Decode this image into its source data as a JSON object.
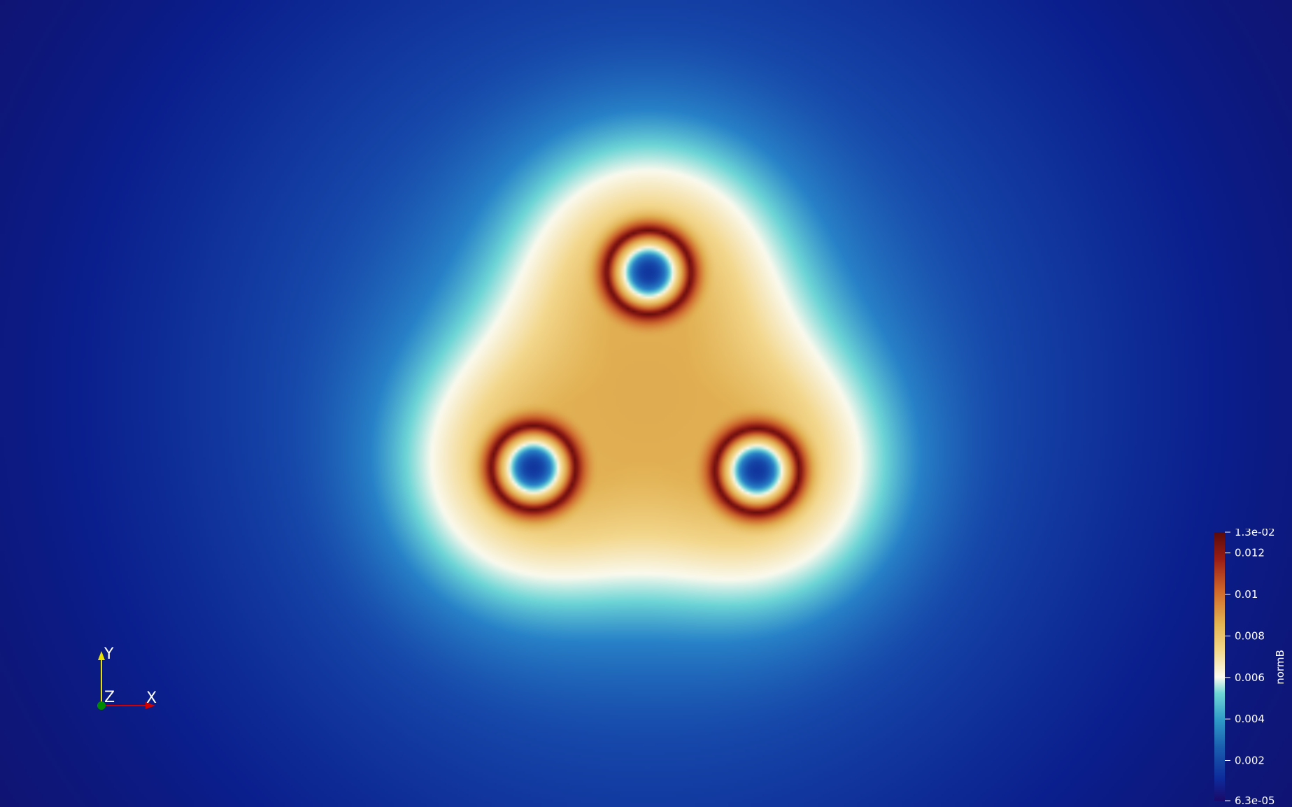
{
  "visualization": {
    "scalar_field": "normB",
    "colormap": "jet-like (dark blue → cyan → white → yellow → dark red)",
    "background_color": "#160b50",
    "sources": [
      "vortex-top",
      "vortex-bottom-left",
      "vortex-bottom-right"
    ]
  },
  "orientation_axes": {
    "y_label": "Y",
    "z_label": "Z",
    "x_label": "X",
    "y_color": "#e8e000",
    "x_color": "#d40000",
    "z_color": "#008a00"
  },
  "colorbar": {
    "title": "normB",
    "min": 6.3e-05,
    "max": 0.013,
    "ticks": [
      {
        "label": "1.3e-02",
        "value": 0.013
      },
      {
        "label": "0.012",
        "value": 0.012
      },
      {
        "label": "0.01",
        "value": 0.01
      },
      {
        "label": "0.008",
        "value": 0.008
      },
      {
        "label": "0.006",
        "value": 0.006
      },
      {
        "label": "0.004",
        "value": 0.004
      },
      {
        "label": "0.002",
        "value": 0.002
      },
      {
        "label": "6.3e-05",
        "value": 6.3e-05
      }
    ]
  }
}
